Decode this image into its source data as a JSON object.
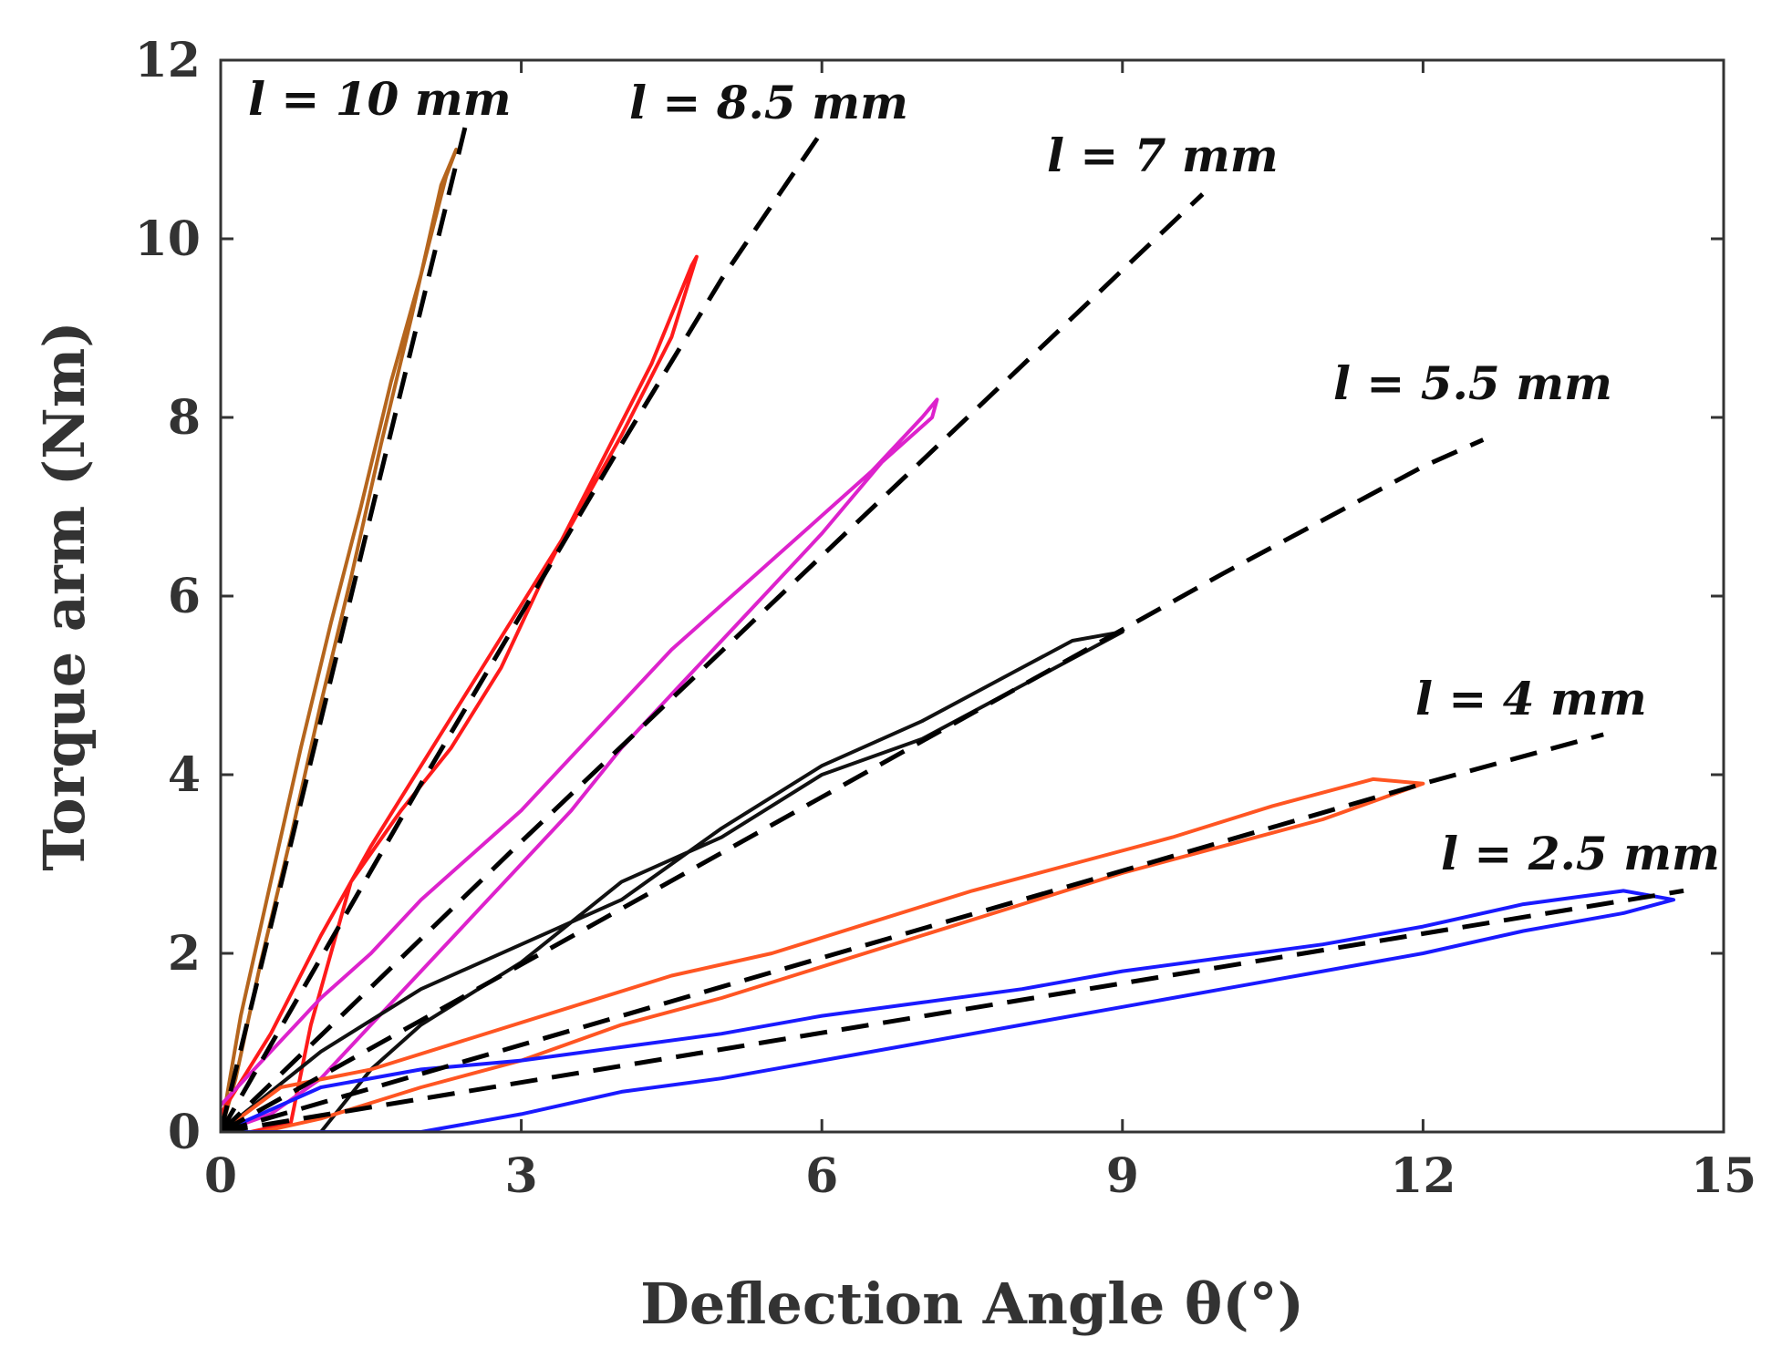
{
  "chart_data": {
    "type": "line",
    "title": "",
    "xlabel": "Deflection Angle θ(°)",
    "ylabel": "Torque arm (Nm)",
    "xlim": [
      0,
      15
    ],
    "ylim": [
      0,
      12
    ],
    "xticks": [
      0,
      3,
      6,
      9,
      12,
      15
    ],
    "yticks": [
      0,
      2,
      4,
      6,
      8,
      10,
      12
    ],
    "grid": false,
    "series": [
      {
        "name": "l = 10 mm",
        "color": "#B5651D",
        "fit_x": [
          0,
          2.45
        ],
        "fit_y": [
          0,
          11.3
        ],
        "load_x": [
          0,
          0.2,
          0.5,
          0.8,
          1.1,
          1.4,
          1.7,
          2.0,
          2.25,
          2.35
        ],
        "load_y": [
          0,
          1.3,
          2.8,
          4.3,
          5.7,
          7.0,
          8.4,
          9.6,
          10.7,
          11.0
        ],
        "unload_x": [
          2.35,
          2.2,
          1.9,
          1.6,
          1.3,
          1.0,
          0.7,
          0.4,
          0.15,
          0
        ],
        "unload_y": [
          11.0,
          10.6,
          9.1,
          7.7,
          6.2,
          4.8,
          3.3,
          1.9,
          0.6,
          0
        ]
      },
      {
        "name": "l = 8.5 mm",
        "color": "#FF1A1A",
        "fit_x": [
          0,
          1.0,
          2.0,
          3.0,
          4.0,
          5.0,
          6.0
        ],
        "fit_y": [
          0,
          1.95,
          3.9,
          5.8,
          7.7,
          9.55,
          11.2
        ],
        "load_x": [
          0,
          0.5,
          1.0,
          1.5,
          2.0,
          2.5,
          3.0,
          3.5,
          4.0,
          4.5,
          4.75
        ],
        "load_y": [
          0.2,
          1.1,
          2.2,
          3.2,
          4.1,
          5.0,
          5.9,
          6.8,
          7.8,
          8.9,
          9.8
        ],
        "unload_x": [
          4.75,
          4.7,
          4.3,
          3.8,
          3.3,
          2.8,
          2.3,
          1.8,
          1.3,
          0.9,
          0.7,
          0.3,
          0
        ],
        "unload_y": [
          9.8,
          9.7,
          8.6,
          7.5,
          6.4,
          5.2,
          4.3,
          3.6,
          2.8,
          1.2,
          0.1,
          0,
          0
        ]
      },
      {
        "name": "l = 7 mm",
        "color": "#DD22CC",
        "fit_x": [
          0,
          1.5,
          3.0,
          4.5,
          6.0,
          7.5,
          9.0,
          9.8
        ],
        "fit_y": [
          0,
          1.62,
          3.25,
          4.85,
          6.45,
          8.05,
          9.65,
          10.5
        ],
        "load_x": [
          0,
          0.5,
          1.0,
          1.5,
          2.0,
          2.5,
          3.0,
          3.5,
          4.0,
          4.5,
          5.0,
          5.5,
          6.0,
          6.5,
          7.0,
          7.15
        ],
        "load_y": [
          0.3,
          0.9,
          1.5,
          2.0,
          2.6,
          3.1,
          3.6,
          4.2,
          4.8,
          5.4,
          5.9,
          6.4,
          6.9,
          7.4,
          8.0,
          8.2
        ],
        "unload_x": [
          7.15,
          7.1,
          6.6,
          6.0,
          5.5,
          5.0,
          4.5,
          4.0,
          3.5,
          3.0,
          2.5,
          2.0,
          1.5,
          1.0,
          0.5,
          0
        ],
        "unload_y": [
          8.2,
          8.0,
          7.5,
          6.7,
          6.1,
          5.5,
          4.9,
          4.3,
          3.6,
          3.0,
          2.4,
          1.8,
          1.2,
          0.6,
          0.2,
          0
        ]
      },
      {
        "name": "l = 5.5 mm",
        "color": "#111111",
        "fit_x": [
          0,
          2.0,
          4.0,
          6.0,
          8.0,
          10.0,
          12.0,
          12.6
        ],
        "fit_y": [
          0,
          1.25,
          2.5,
          3.75,
          5.0,
          6.25,
          7.45,
          7.75
        ],
        "load_x": [
          0,
          1.0,
          1.5,
          2.0,
          3.0,
          4.0,
          5.0,
          6.0,
          7.0,
          8.0,
          9.0
        ],
        "load_y": [
          0,
          0,
          0.7,
          1.2,
          1.9,
          2.8,
          3.3,
          4.0,
          4.4,
          5.0,
          5.6
        ],
        "unload_x": [
          9.0,
          8.5,
          8.0,
          7.0,
          6.0,
          5.0,
          4.0,
          3.0,
          2.0,
          1.0,
          0
        ],
        "unload_y": [
          5.6,
          5.5,
          5.2,
          4.6,
          4.1,
          3.4,
          2.6,
          2.1,
          1.6,
          0.9,
          0
        ]
      },
      {
        "name": "l = 4 mm",
        "color": "#FF5522",
        "fit_x": [
          0,
          2.0,
          4.0,
          6.0,
          8.0,
          10.0,
          12.0,
          13.8
        ],
        "fit_y": [
          0,
          0.65,
          1.3,
          1.95,
          2.6,
          3.25,
          3.9,
          4.45
        ],
        "load_x": [
          0,
          0.4,
          1.0,
          2.0,
          3.0,
          4.0,
          5.0,
          6.0,
          7.0,
          8.0,
          9.0,
          10.0,
          11.0,
          12.0
        ],
        "load_y": [
          0,
          0,
          0.15,
          0.5,
          0.8,
          1.2,
          1.5,
          1.85,
          2.2,
          2.55,
          2.9,
          3.2,
          3.5,
          3.9
        ],
        "unload_x": [
          12.0,
          11.5,
          10.5,
          9.5,
          8.5,
          7.5,
          6.5,
          5.5,
          4.5,
          3.5,
          2.5,
          1.5,
          0.6,
          0
        ],
        "unload_y": [
          3.9,
          3.95,
          3.65,
          3.3,
          3.0,
          2.7,
          2.35,
          2.0,
          1.75,
          1.4,
          1.05,
          0.7,
          0.5,
          0
        ]
      },
      {
        "name": "l = 2.5 mm",
        "color": "#1A1AFF",
        "fit_x": [
          0,
          2.0,
          4.0,
          6.0,
          8.0,
          10.0,
          12.0,
          14.6
        ],
        "fit_y": [
          0,
          0.37,
          0.74,
          1.11,
          1.48,
          1.85,
          2.22,
          2.7
        ],
        "load_x": [
          0,
          0.5,
          1.0,
          2.0,
          3.0,
          4.0,
          5.0,
          6.0,
          7.0,
          8.0,
          9.0,
          10.0,
          11.0,
          12.0,
          13.0,
          14.0,
          14.5
        ],
        "load_y": [
          0,
          0,
          0,
          0,
          0.2,
          0.45,
          0.6,
          0.8,
          1.0,
          1.2,
          1.4,
          1.6,
          1.8,
          2.0,
          2.25,
          2.45,
          2.6
        ],
        "unload_x": [
          14.5,
          14.0,
          13.0,
          12.0,
          11.0,
          10.0,
          9.0,
          8.0,
          7.0,
          6.0,
          5.0,
          4.0,
          3.0,
          2.0,
          1.0,
          0
        ],
        "unload_y": [
          2.6,
          2.7,
          2.55,
          2.3,
          2.1,
          1.95,
          1.8,
          1.6,
          1.45,
          1.3,
          1.1,
          0.95,
          0.8,
          0.7,
          0.5,
          0
        ]
      }
    ]
  }
}
